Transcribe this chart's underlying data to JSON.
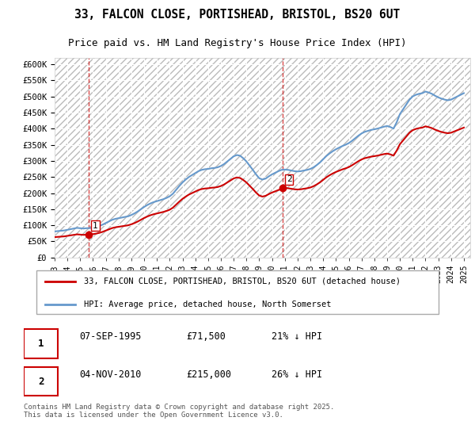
{
  "title_line1": "33, FALCON CLOSE, PORTISHEAD, BRISTOL, BS20 6UT",
  "title_line2": "Price paid vs. HM Land Registry's House Price Index (HPI)",
  "ylabel_ticks": [
    "£0",
    "£50K",
    "£100K",
    "£150K",
    "£200K",
    "£250K",
    "£300K",
    "£350K",
    "£400K",
    "£450K",
    "£500K",
    "£550K",
    "£600K"
  ],
  "ytick_values": [
    0,
    50000,
    100000,
    150000,
    200000,
    250000,
    300000,
    350000,
    400000,
    450000,
    500000,
    550000,
    600000
  ],
  "ylim": [
    0,
    620000
  ],
  "xlim_start": 1993.0,
  "xlim_end": 2025.5,
  "xtick_years": [
    1993,
    1994,
    1995,
    1996,
    1997,
    1998,
    1999,
    2000,
    2001,
    2002,
    2003,
    2004,
    2005,
    2006,
    2007,
    2008,
    2009,
    2010,
    2011,
    2012,
    2013,
    2014,
    2015,
    2016,
    2017,
    2018,
    2019,
    2020,
    2021,
    2022,
    2023,
    2024,
    2025
  ],
  "sale1_x": 1995.68,
  "sale1_y": 71500,
  "sale1_label": "1",
  "sale1_date": "07-SEP-1995",
  "sale1_price": "£71,500",
  "sale1_hpi": "21% ↓ HPI",
  "sale2_x": 2010.84,
  "sale2_y": 215000,
  "sale2_label": "2",
  "sale2_date": "04-NOV-2010",
  "sale2_price": "£215,000",
  "sale2_hpi": "26% ↓ HPI",
  "line_color_hpi": "#6699cc",
  "line_color_sale": "#cc0000",
  "dot_color_sale": "#cc0000",
  "legend_label_sale": "33, FALCON CLOSE, PORTISHEAD, BRISTOL, BS20 6UT (detached house)",
  "legend_label_hpi": "HPI: Average price, detached house, North Somerset",
  "footnote": "Contains HM Land Registry data © Crown copyright and database right 2025.\nThis data is licensed under the Open Government Licence v3.0.",
  "bg_color": "#ffffff",
  "plot_bg_color": "#f0f0f0",
  "hatch_pattern": "////",
  "grid_color": "#ffffff",
  "vline_color_sale1": "#cc0000",
  "vline_color_sale2": "#cc0000",
  "hpi_data_x": [
    1993.0,
    1993.25,
    1993.5,
    1993.75,
    1994.0,
    1994.25,
    1994.5,
    1994.75,
    1995.0,
    1995.25,
    1995.5,
    1995.75,
    1996.0,
    1996.25,
    1996.5,
    1996.75,
    1997.0,
    1997.25,
    1997.5,
    1997.75,
    1998.0,
    1998.25,
    1998.5,
    1998.75,
    1999.0,
    1999.25,
    1999.5,
    1999.75,
    2000.0,
    2000.25,
    2000.5,
    2000.75,
    2001.0,
    2001.25,
    2001.5,
    2001.75,
    2002.0,
    2002.25,
    2002.5,
    2002.75,
    2003.0,
    2003.25,
    2003.5,
    2003.75,
    2004.0,
    2004.25,
    2004.5,
    2004.75,
    2005.0,
    2005.25,
    2005.5,
    2005.75,
    2006.0,
    2006.25,
    2006.5,
    2006.75,
    2007.0,
    2007.25,
    2007.5,
    2007.75,
    2008.0,
    2008.25,
    2008.5,
    2008.75,
    2009.0,
    2009.25,
    2009.5,
    2009.75,
    2010.0,
    2010.25,
    2010.5,
    2010.75,
    2011.0,
    2011.25,
    2011.5,
    2011.75,
    2012.0,
    2012.25,
    2012.5,
    2012.75,
    2013.0,
    2013.25,
    2013.5,
    2013.75,
    2014.0,
    2014.25,
    2014.5,
    2014.75,
    2015.0,
    2015.25,
    2015.5,
    2015.75,
    2016.0,
    2016.25,
    2016.5,
    2016.75,
    2017.0,
    2017.25,
    2017.5,
    2017.75,
    2018.0,
    2018.25,
    2018.5,
    2018.75,
    2019.0,
    2019.25,
    2019.5,
    2019.75,
    2020.0,
    2020.25,
    2020.5,
    2020.75,
    2021.0,
    2021.25,
    2021.5,
    2021.75,
    2022.0,
    2022.25,
    2022.5,
    2022.75,
    2023.0,
    2023.25,
    2023.5,
    2023.75,
    2024.0,
    2024.25,
    2024.5,
    2024.75,
    2025.0
  ],
  "hpi_data_y": [
    81000,
    82000,
    83000,
    84000,
    86000,
    88000,
    90000,
    92000,
    91000,
    90000,
    91000,
    91500,
    93000,
    95000,
    98000,
    102000,
    107000,
    112000,
    117000,
    120000,
    122000,
    124000,
    126000,
    128000,
    132000,
    137000,
    143000,
    150000,
    157000,
    163000,
    168000,
    172000,
    175000,
    178000,
    181000,
    185000,
    190000,
    198000,
    210000,
    222000,
    233000,
    242000,
    250000,
    256000,
    262000,
    268000,
    272000,
    274000,
    275000,
    277000,
    278000,
    280000,
    284000,
    290000,
    298000,
    306000,
    314000,
    318000,
    316000,
    308000,
    298000,
    285000,
    272000,
    258000,
    246000,
    242000,
    245000,
    252000,
    258000,
    263000,
    268000,
    272000,
    273000,
    272000,
    270000,
    268000,
    267000,
    268000,
    270000,
    272000,
    275000,
    280000,
    287000,
    295000,
    305000,
    315000,
    323000,
    330000,
    336000,
    341000,
    346000,
    350000,
    355000,
    362000,
    370000,
    378000,
    385000,
    390000,
    393000,
    396000,
    398000,
    400000,
    403000,
    406000,
    408000,
    405000,
    400000,
    420000,
    445000,
    460000,
    475000,
    490000,
    500000,
    505000,
    508000,
    510000,
    515000,
    512000,
    508000,
    502000,
    497000,
    493000,
    490000,
    488000,
    490000,
    495000,
    500000,
    505000,
    510000
  ],
  "sale_data_x": [
    1995.68,
    2010.84
  ],
  "sale_data_y": [
    71500,
    215000
  ],
  "sale_labels": [
    "1",
    "2"
  ]
}
